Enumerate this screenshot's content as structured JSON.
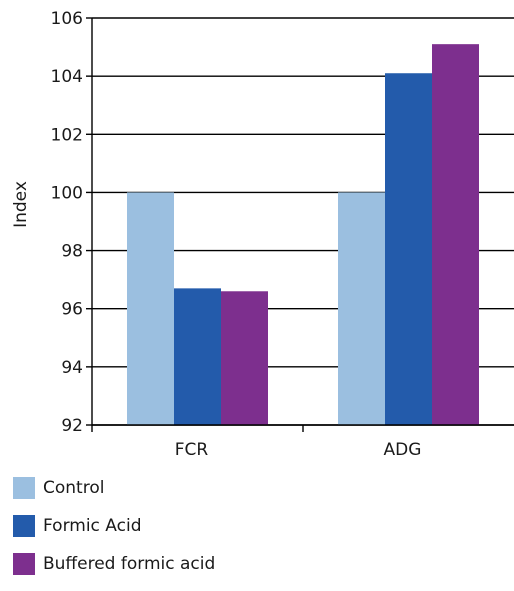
{
  "chart_data": {
    "type": "bar",
    "ylabel": "Index",
    "xlabel": "",
    "categories": [
      "FCR",
      "ADG"
    ],
    "ylim": [
      92,
      106
    ],
    "yticks": [
      92,
      94,
      96,
      98,
      100,
      102,
      104,
      106
    ],
    "grid": "horizontal",
    "legend_position": "bottom-left",
    "series": [
      {
        "name": "Control",
        "values": [
          100,
          100
        ],
        "color": "#9BBFE0"
      },
      {
        "name": "Formic Acid",
        "values": [
          96.7,
          104.1
        ],
        "color": "#235BAB"
      },
      {
        "name": "Buffered formic acid",
        "values": [
          96.6,
          105.1
        ],
        "color": "#7D2F8E"
      }
    ]
  }
}
